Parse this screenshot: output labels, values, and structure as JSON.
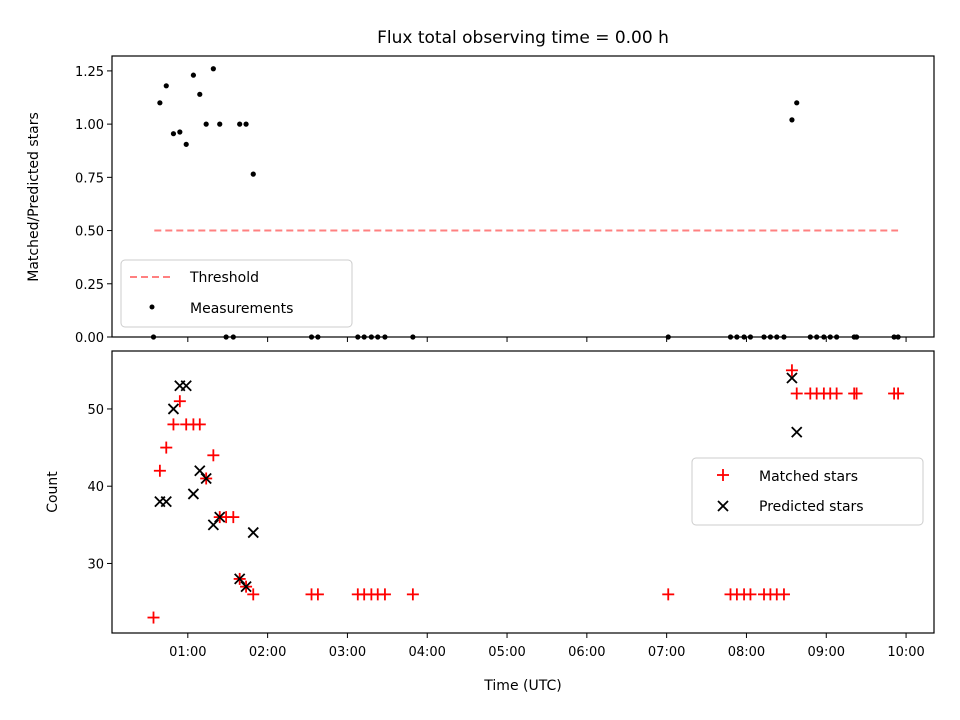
{
  "chart_data": [
    {
      "type": "scatter",
      "title": "Flux total observing time = 0.00 h",
      "xlabel": "",
      "ylabel": "Matched/Predicted stars",
      "ylim": [
        0,
        1.32
      ],
      "yticks": [
        "0.00",
        "0.25",
        "0.50",
        "0.75",
        "1.00",
        "1.25"
      ],
      "threshold": {
        "name": "Threshold",
        "value": 0.5,
        "x_range": [
          0.58,
          9.9
        ],
        "color": "#ff8080"
      },
      "series": [
        {
          "name": "Measurements",
          "color": "#000000",
          "marker": "dot",
          "points": [
            [
              0.57,
              0.0
            ],
            [
              0.65,
              1.1
            ],
            [
              0.73,
              1.18
            ],
            [
              0.82,
              0.955
            ],
            [
              0.9,
              0.963
            ],
            [
              0.98,
              0.905
            ],
            [
              1.07,
              1.23
            ],
            [
              1.15,
              1.14
            ],
            [
              1.23,
              1.0
            ],
            [
              1.32,
              1.26
            ],
            [
              1.4,
              1.0
            ],
            [
              1.48,
              0.0
            ],
            [
              1.57,
              0.0
            ],
            [
              1.65,
              1.0
            ],
            [
              1.73,
              1.0
            ],
            [
              1.82,
              0.765
            ],
            [
              2.55,
              0.0
            ],
            [
              2.63,
              0.0
            ],
            [
              3.13,
              0.0
            ],
            [
              3.21,
              0.0
            ],
            [
              3.3,
              0.0
            ],
            [
              3.38,
              0.0
            ],
            [
              3.47,
              0.0
            ],
            [
              3.82,
              0.0
            ],
            [
              7.02,
              0.0
            ],
            [
              7.8,
              0.0
            ],
            [
              7.88,
              0.0
            ],
            [
              7.97,
              0.0
            ],
            [
              8.05,
              0.0
            ],
            [
              8.22,
              0.0
            ],
            [
              8.3,
              0.0
            ],
            [
              8.38,
              0.0
            ],
            [
              8.47,
              0.0
            ],
            [
              8.57,
              1.02
            ],
            [
              8.63,
              1.1
            ],
            [
              8.8,
              0.0
            ],
            [
              8.88,
              0.0
            ],
            [
              8.97,
              0.0
            ],
            [
              9.05,
              0.0
            ],
            [
              9.13,
              0.0
            ],
            [
              9.35,
              0.0
            ],
            [
              9.38,
              0.0
            ],
            [
              9.85,
              0.0
            ],
            [
              9.9,
              0.0
            ]
          ]
        }
      ],
      "legend": {
        "position": "lower-left",
        "entries": [
          "Threshold",
          "Measurements"
        ]
      },
      "grid": false
    },
    {
      "type": "scatter",
      "title": "",
      "xlabel": "Time (UTC)",
      "ylabel": "Count",
      "xlim": [
        0.05,
        10.35
      ],
      "ylim": [
        21,
        57.5
      ],
      "xticks": [
        "01:00",
        "02:00",
        "03:00",
        "04:00",
        "05:00",
        "06:00",
        "07:00",
        "08:00",
        "09:00",
        "10:00"
      ],
      "yticks": [
        "30",
        "40",
        "50"
      ],
      "series": [
        {
          "name": "Matched stars",
          "color": "#ff0000",
          "marker": "plus",
          "points": [
            [
              0.57,
              23
            ],
            [
              0.65,
              42
            ],
            [
              0.73,
              45
            ],
            [
              0.82,
              48
            ],
            [
              0.9,
              51
            ],
            [
              0.98,
              48
            ],
            [
              1.07,
              48
            ],
            [
              1.15,
              48
            ],
            [
              1.23,
              41
            ],
            [
              1.32,
              44
            ],
            [
              1.4,
              36
            ],
            [
              1.48,
              36
            ],
            [
              1.57,
              36
            ],
            [
              1.65,
              28
            ],
            [
              1.73,
              27
            ],
            [
              1.82,
              26
            ],
            [
              2.55,
              26
            ],
            [
              2.63,
              26
            ],
            [
              3.13,
              26
            ],
            [
              3.21,
              26
            ],
            [
              3.3,
              26
            ],
            [
              3.38,
              26
            ],
            [
              3.47,
              26
            ],
            [
              3.82,
              26
            ],
            [
              7.02,
              26
            ],
            [
              7.8,
              26
            ],
            [
              7.88,
              26
            ],
            [
              7.97,
              26
            ],
            [
              8.05,
              26
            ],
            [
              8.22,
              26
            ],
            [
              8.3,
              26
            ],
            [
              8.38,
              26
            ],
            [
              8.47,
              26
            ],
            [
              8.57,
              55
            ],
            [
              8.63,
              52
            ],
            [
              8.8,
              52
            ],
            [
              8.88,
              52
            ],
            [
              8.97,
              52
            ],
            [
              9.05,
              52
            ],
            [
              9.13,
              52
            ],
            [
              9.35,
              52
            ],
            [
              9.38,
              52
            ],
            [
              9.85,
              52
            ],
            [
              9.9,
              52
            ]
          ]
        },
        {
          "name": "Predicted stars",
          "color": "#000000",
          "marker": "x",
          "points": [
            [
              0.65,
              38
            ],
            [
              0.73,
              38
            ],
            [
              0.82,
              50
            ],
            [
              0.9,
              53
            ],
            [
              0.98,
              53
            ],
            [
              1.07,
              39
            ],
            [
              1.15,
              42
            ],
            [
              1.23,
              41
            ],
            [
              1.32,
              35
            ],
            [
              1.4,
              36
            ],
            [
              1.65,
              28
            ],
            [
              1.73,
              27
            ],
            [
              1.82,
              34
            ],
            [
              8.57,
              54
            ],
            [
              8.63,
              47
            ]
          ]
        }
      ],
      "legend": {
        "position": "center-right",
        "entries": [
          "Matched stars",
          "Predicted stars"
        ]
      },
      "grid": false
    }
  ]
}
